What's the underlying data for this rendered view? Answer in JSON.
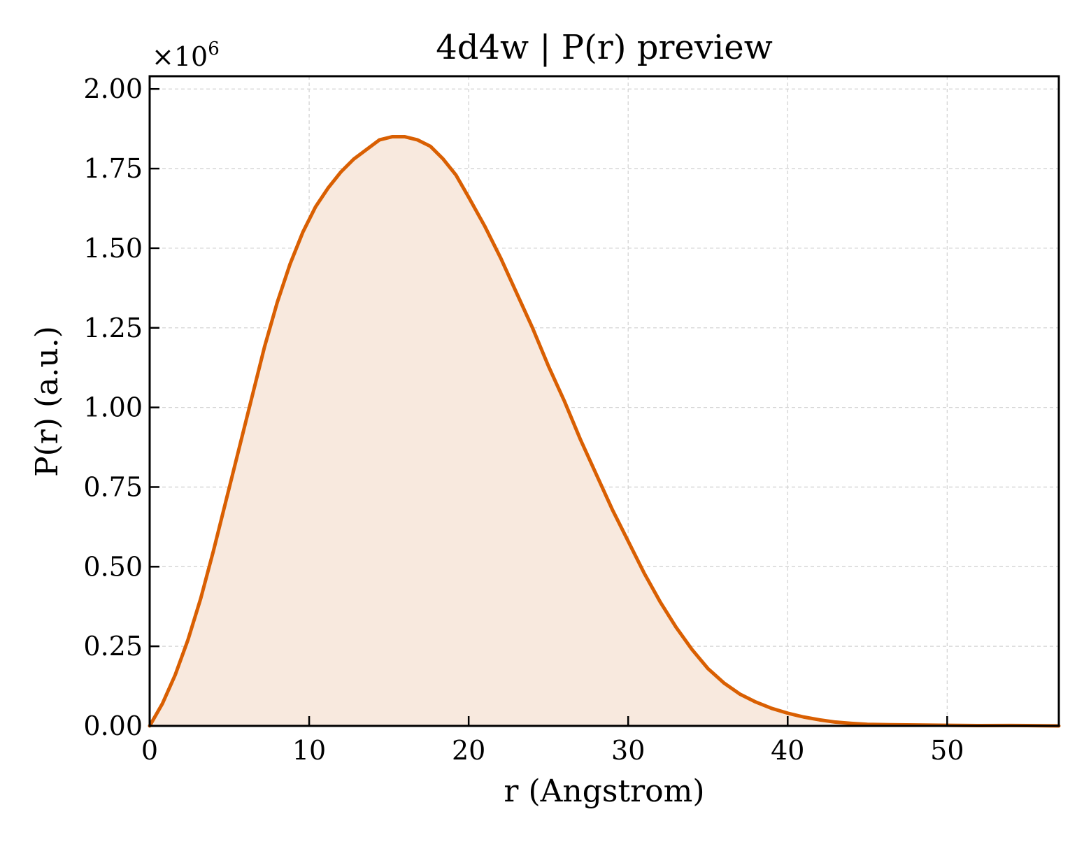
{
  "chart_data": {
    "type": "area",
    "title": "4d4w | P(r) preview",
    "xlabel": "r (Angstrom)",
    "ylabel": "P(r) (a.u.)",
    "y_multiplier_base": "×10",
    "y_multiplier_exp": "6",
    "xlim": [
      0,
      57
    ],
    "ylim": [
      0,
      2.04
    ],
    "x_ticks": [
      0,
      10,
      20,
      30,
      40,
      50
    ],
    "x_tick_labels": [
      "0",
      "10",
      "20",
      "30",
      "40",
      "50"
    ],
    "y_ticks": [
      0,
      0.25,
      0.5,
      0.75,
      1.0,
      1.25,
      1.5,
      1.75,
      2.0
    ],
    "y_tick_labels": [
      "0.00",
      "0.25",
      "0.50",
      "0.75",
      "1.00",
      "1.25",
      "1.50",
      "1.75",
      "2.00"
    ],
    "grid": true,
    "line_color": "#d95f02",
    "fill_color": "#f8e9de",
    "series": [
      {
        "x": [
          0,
          0.8,
          1.6,
          2.4,
          3.2,
          4.0,
          4.8,
          5.6,
          6.4,
          7.2,
          8.0,
          8.8,
          9.6,
          10.4,
          11.2,
          12.0,
          12.8,
          13.6,
          14.4,
          15.2,
          16.0,
          16.8,
          17.6,
          18.4,
          19.2,
          20.0,
          21.0,
          22.0,
          23.0,
          24.0,
          25.0,
          26.0,
          27.0,
          28.0,
          29.0,
          30.0,
          31.0,
          32.0,
          33.0,
          34.0,
          35.0,
          36.0,
          37.0,
          38.0,
          39.0,
          40.0,
          41.0,
          42.0,
          43.0,
          44.0,
          45.0,
          46.0,
          48.0,
          50.0,
          52.0,
          54.0,
          55.0,
          57.0
        ],
        "y": [
          0.0,
          0.07,
          0.16,
          0.27,
          0.4,
          0.55,
          0.71,
          0.87,
          1.03,
          1.19,
          1.33,
          1.45,
          1.55,
          1.63,
          1.69,
          1.74,
          1.78,
          1.81,
          1.84,
          1.85,
          1.85,
          1.84,
          1.82,
          1.78,
          1.73,
          1.66,
          1.57,
          1.47,
          1.36,
          1.25,
          1.13,
          1.02,
          0.9,
          0.79,
          0.68,
          0.58,
          0.48,
          0.39,
          0.31,
          0.24,
          0.18,
          0.135,
          0.1,
          0.075,
          0.055,
          0.04,
          0.028,
          0.019,
          0.012,
          0.008,
          0.005,
          0.004,
          0.003,
          0.002,
          0.001,
          0.0015,
          0.001,
          0.0
        ]
      }
    ]
  }
}
